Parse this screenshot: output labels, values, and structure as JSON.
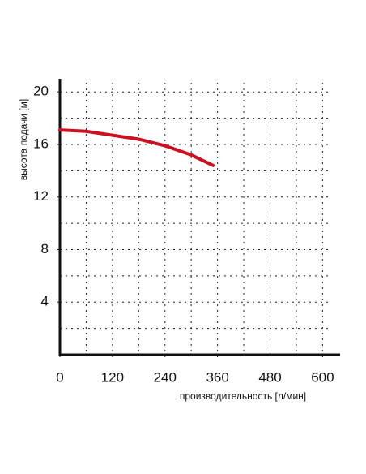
{
  "chart_data": {
    "type": "line",
    "xlabel": "производительность [л/мин]",
    "ylabel": "высота подачи [м]",
    "xlim": [
      0,
      640
    ],
    "ylim": [
      0,
      21
    ],
    "xticks": [
      0,
      120,
      240,
      360,
      480,
      600
    ],
    "yticks": [
      4,
      8,
      12,
      16,
      20
    ],
    "xgrid": [
      60,
      120,
      180,
      240,
      300,
      360,
      420,
      480,
      540,
      600
    ],
    "ygrid": [
      2,
      4,
      6,
      8,
      10,
      12,
      14,
      16,
      18,
      20
    ],
    "series": [
      {
        "color": "#cc1020",
        "x": [
          0,
          60,
          120,
          180,
          240,
          300,
          350
        ],
        "values": [
          17.1,
          17.0,
          16.7,
          16.4,
          15.9,
          15.2,
          14.4
        ]
      }
    ]
  }
}
